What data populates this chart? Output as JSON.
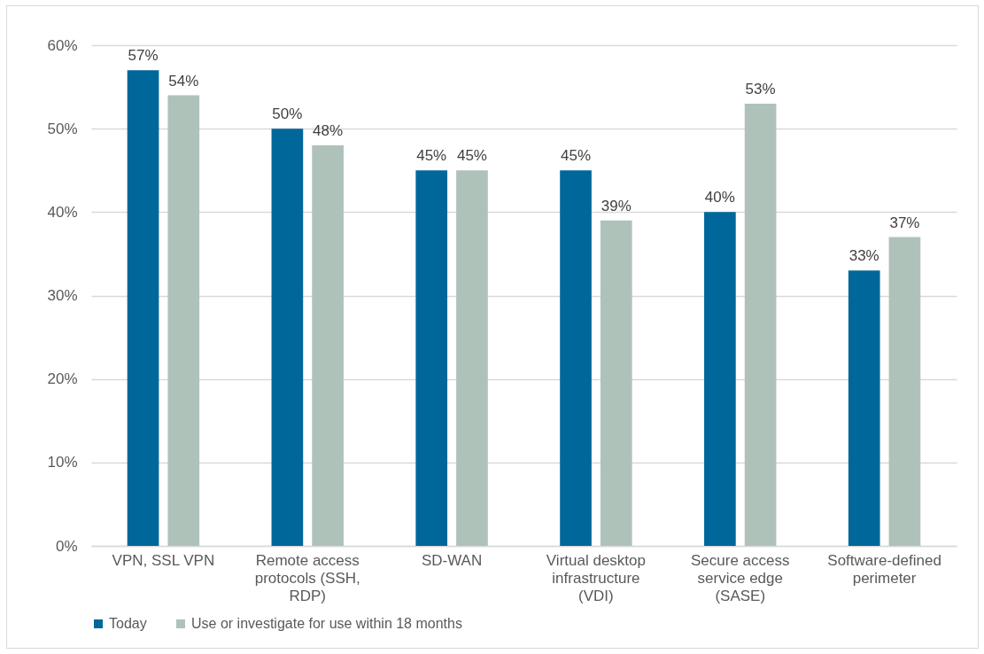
{
  "chart_data": {
    "type": "bar",
    "categories": [
      "VPN, SSL VPN",
      "Remote access protocols (SSH, RDP)",
      "SD-WAN",
      "Virtual desktop infrastructure (VDI)",
      "Secure access service edge (SASE)",
      "Software-defined perimeter"
    ],
    "series": [
      {
        "name": "Today",
        "color": "#00679a",
        "values": [
          57,
          50,
          45,
          45,
          40,
          33
        ],
        "value_labels": [
          "57%",
          "50%",
          "45%",
          "45%",
          "40%",
          "33%"
        ]
      },
      {
        "name": "Use or investigate for use within 18 months",
        "color": "#aec2b9",
        "values": [
          54,
          48,
          45,
          39,
          53,
          37
        ],
        "value_labels": [
          "54%",
          "48%",
          "45%",
          "39%",
          "53%",
          "37%"
        ]
      }
    ],
    "ylim": [
      0,
      60
    ],
    "yticks": [
      {
        "value": 0,
        "label": "0%"
      },
      {
        "value": 10,
        "label": "10%"
      },
      {
        "value": 20,
        "label": "20%"
      },
      {
        "value": 30,
        "label": "30%"
      },
      {
        "value": 40,
        "label": "40%"
      },
      {
        "value": 50,
        "label": "50%"
      },
      {
        "value": 60,
        "label": "60%"
      }
    ],
    "grid": "y",
    "legend": "bottom"
  }
}
